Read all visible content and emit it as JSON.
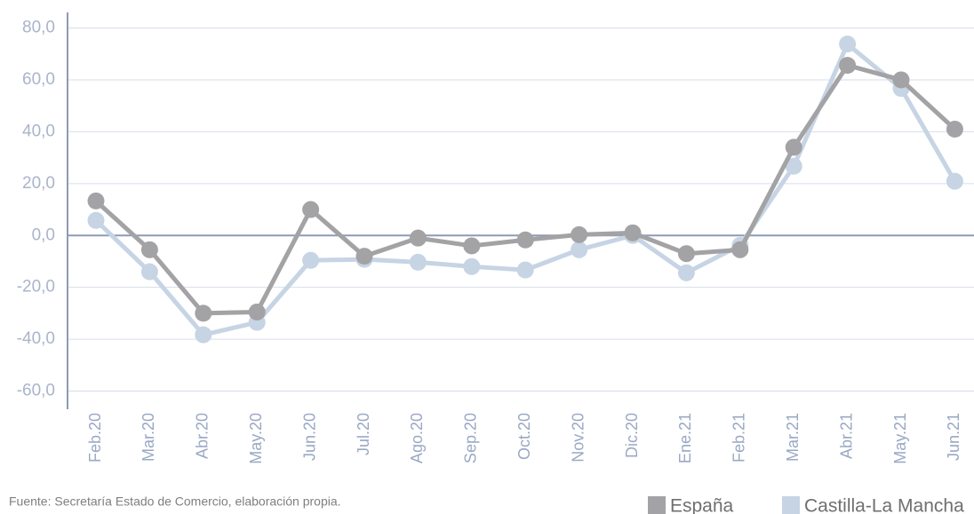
{
  "chart_data": {
    "type": "line",
    "source": "Fuente: Secretaría Estado de Comercio, elaboración propia.",
    "categories": [
      "Feb.20",
      "Mar.20",
      "Abr.20",
      "May.20",
      "Jun.20",
      "Jul.20",
      "Ago.20",
      "Sep.20",
      "Oct.20",
      "Nov.20",
      "Dic.20",
      "Ene.21",
      "Feb.21",
      "Mar.21",
      "Abr.21",
      "May.21",
      "Jun.21"
    ],
    "series": [
      {
        "name": "España",
        "color": "#a3a2a4",
        "values": [
          13.3,
          -5.5,
          -30,
          -29.5,
          10,
          -8,
          -1,
          -4,
          -1.7,
          0.3,
          1,
          -7,
          -5.5,
          34,
          65.6,
          60,
          41
        ]
      },
      {
        "name": "Castilla-La Mancha",
        "color": "#c6d4e4",
        "values": [
          5.8,
          -14,
          -38.3,
          -33.5,
          -9.6,
          -9.2,
          -10.3,
          -12,
          -13.3,
          -5.5,
          0,
          -14.4,
          -3.8,
          26.7,
          73.8,
          56.7,
          20.9
        ]
      }
    ],
    "ylim": [
      -67,
      86
    ],
    "yticks": [
      {
        "value": 80,
        "label": "80,0"
      },
      {
        "value": 60,
        "label": "60,0"
      },
      {
        "value": 40,
        "label": "40,0"
      },
      {
        "value": 20,
        "label": "20,0"
      },
      {
        "value": 0,
        "label": "0,0"
      },
      {
        "value": -20,
        "label": "-20,0"
      },
      {
        "value": -40,
        "label": "-40,0"
      },
      {
        "value": -60,
        "label": "-60,0"
      }
    ],
    "grid": true
  }
}
